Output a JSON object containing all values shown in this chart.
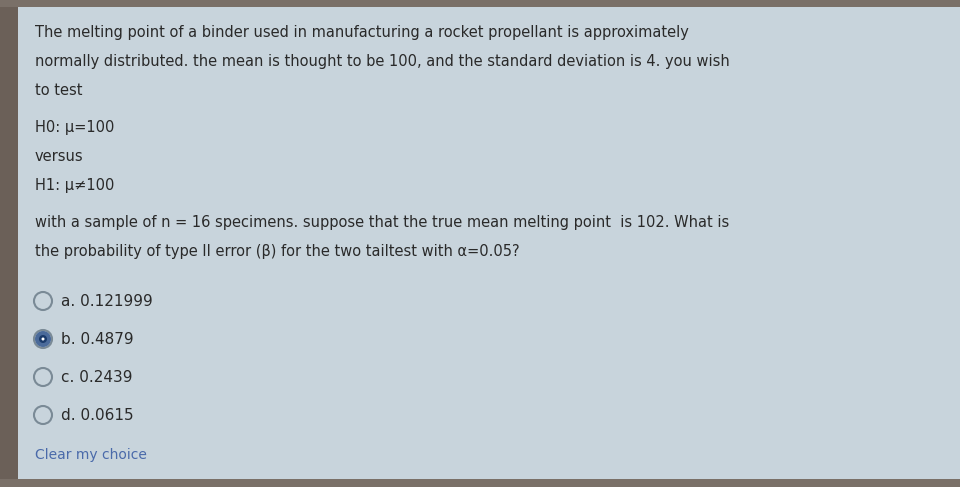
{
  "outer_bg": "#9a9080",
  "left_bar_color": "#6b6058",
  "main_bg": "#c8d4dc",
  "text_color": "#2a2a2a",
  "title_lines": [
    "The melting point of a binder used in manufacturing a rocket propellant is approximately",
    "normally distributed. the mean is thought to be 100, and the standard deviation is 4. you wish",
    "to test"
  ],
  "h0_line": "H0: μ=100",
  "versus_line": "versus",
  "h1_line": "H1: μ≠100",
  "body_lines": [
    "with a sample of n = 16 specimens. suppose that the true mean melting point  is 102. What is",
    "the probability of type II error (β) for the two tail​test with α=0.05?"
  ],
  "options": [
    {
      "label": "a. 0.121999",
      "selected": false
    },
    {
      "label": "b. 0.4879",
      "selected": true
    },
    {
      "label": "c. 0.2439",
      "selected": false
    },
    {
      "label": "d. 0.0615",
      "selected": false
    }
  ],
  "footer": "Clear my choice",
  "font_size_body": 10.5,
  "font_size_options": 11.0,
  "font_size_footer": 10.0,
  "radio_color_unsel": "#7a8a96",
  "radio_color_sel_outer": "#4a6a9a",
  "radio_color_sel_inner": "#1a3a6a",
  "footer_color": "#4a6aaa"
}
